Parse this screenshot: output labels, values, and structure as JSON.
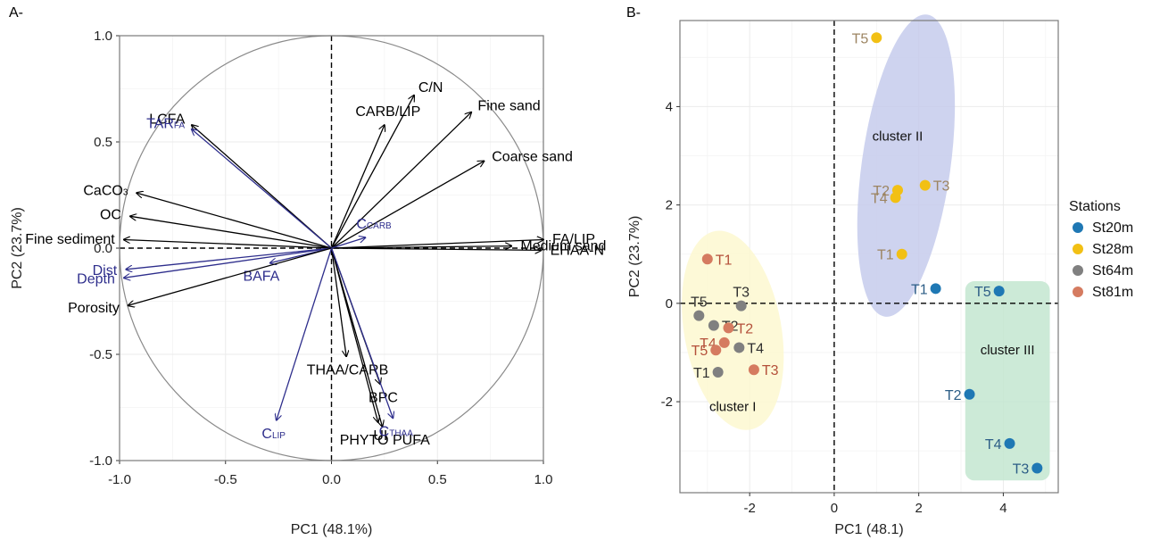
{
  "chart_data": [
    {
      "type": "biplot",
      "panel_label": "A-",
      "xlabel": "PC1 (48.1%)",
      "ylabel": "PC2 (23.7%)",
      "xlim": [
        -1.0,
        1.0
      ],
      "ylim": [
        -1.0,
        1.0
      ],
      "xticks": [
        -1.0,
        -0.5,
        0.0,
        0.5,
        1.0
      ],
      "xtick_labels": [
        "-1.0",
        "-0.5",
        "0.0",
        "0.5",
        "1.0"
      ],
      "yticks": [
        -1.0,
        -0.5,
        0.0,
        0.5,
        1.0
      ],
      "ytick_labels": [
        "-1.0",
        "-0.5",
        "0.0",
        "0.5",
        "1.0"
      ],
      "grid": true,
      "unit_circle": true,
      "colors": {
        "response": "#000000",
        "explanatory": "#2e2e8c",
        "circle": "#8a8a8a",
        "grid": "#ebebeb"
      },
      "vectors": [
        {
          "label": "LCFA",
          "sub": "",
          "group": "response",
          "x": -0.66,
          "y": 0.58
        },
        {
          "label": "TAR",
          "sub": "FA",
          "group": "explanatory",
          "x": -0.66,
          "y": 0.56
        },
        {
          "label": "C/N",
          "sub": "",
          "group": "response",
          "x": 0.39,
          "y": 0.72
        },
        {
          "label": "CARB/LIP",
          "sub": "",
          "group": "response",
          "x": 0.25,
          "y": 0.58
        },
        {
          "label": "Fine sand",
          "sub": "",
          "group": "response",
          "x": 0.66,
          "y": 0.64
        },
        {
          "label": "Coarse sand",
          "sub": "",
          "group": "response",
          "x": 0.72,
          "y": 0.41
        },
        {
          "label": "CaCO",
          "sub": "3",
          "group": "response",
          "x": -0.92,
          "y": 0.26
        },
        {
          "label": "OC",
          "sub": "",
          "group": "response",
          "x": -0.95,
          "y": 0.15
        },
        {
          "label": "Fine sediment",
          "sub": "",
          "group": "response",
          "x": -0.98,
          "y": 0.04
        },
        {
          "label": "Medium sand",
          "sub": "",
          "group": "response",
          "x": 0.85,
          "y": 0.01
        },
        {
          "label": "FA/LIP",
          "sub": "",
          "group": "response",
          "x": 1.0,
          "y": 0.04
        },
        {
          "label": "EHAA-N",
          "sub": "",
          "group": "response",
          "x": 0.99,
          "y": -0.01
        },
        {
          "label": "C",
          "sub": "CARB",
          "group": "explanatory",
          "x": 0.16,
          "y": 0.05
        },
        {
          "label": "Dist",
          "sub": "",
          "group": "explanatory",
          "x": -0.97,
          "y": -0.1
        },
        {
          "label": "Depth",
          "sub": "",
          "group": "explanatory",
          "x": -0.98,
          "y": -0.14
        },
        {
          "label": "BAFA",
          "sub": "",
          "group": "explanatory",
          "x": -0.29,
          "y": -0.07
        },
        {
          "label": "Porosity",
          "sub": "",
          "group": "response",
          "x": -0.96,
          "y": -0.27
        },
        {
          "label": "THAA/CARB",
          "sub": "",
          "group": "response",
          "x": 0.07,
          "y": -0.51
        },
        {
          "label": "BPC",
          "sub": "",
          "group": "response",
          "x": 0.23,
          "y": -0.64
        },
        {
          "label": "C",
          "sub": "LIP",
          "group": "explanatory",
          "x": -0.26,
          "y": -0.81
        },
        {
          "label": "UI",
          "sub": "",
          "group": "response",
          "x": 0.22,
          "y": -0.82
        },
        {
          "label": "PHYTO PUFA",
          "sub": "",
          "group": "response",
          "x": 0.24,
          "y": -0.84
        },
        {
          "label": "C",
          "sub": "THAA",
          "group": "explanatory",
          "x": 0.29,
          "y": -0.8
        }
      ]
    },
    {
      "type": "scatter",
      "panel_label": "B-",
      "xlabel": "PC1 (48.1)",
      "ylabel": "PC2 (23.7%)",
      "xlim": [
        -3.65,
        5.3
      ],
      "ylim": [
        -3.85,
        5.75
      ],
      "xticks": [
        -2,
        0,
        2,
        4
      ],
      "xtick_labels": [
        "-2",
        "0",
        "2",
        "4"
      ],
      "yticks": [
        -2,
        0,
        2,
        4
      ],
      "ytick_labels": [
        "-2",
        "0",
        "2",
        "4"
      ],
      "grid": true,
      "legend": {
        "title": "Stations",
        "position": "right",
        "items": [
          {
            "name": "St20m",
            "color": "#1f78b4",
            "label_color": "#2c5d86"
          },
          {
            "name": "St28m",
            "color": "#f2c014",
            "label_color": "#9c8461"
          },
          {
            "name": "St64m",
            "color": "#808080",
            "label_color": "#303030"
          },
          {
            "name": "St81m",
            "color": "#d57b60",
            "label_color": "#b4503a"
          }
        ]
      },
      "clusters": [
        {
          "name": "cluster I",
          "fill": "#fdf8d0",
          "shape": "ellipse",
          "cx": -2.4,
          "cy": -0.55,
          "rx": 1.15,
          "ry": 2.05,
          "angle_deg": -10,
          "label_x": -2.4,
          "label_y": -2.1
        },
        {
          "name": "cluster II",
          "fill": "#c6cbec",
          "shape": "ellipse",
          "cx": 1.7,
          "cy": 2.8,
          "rx": 1.05,
          "ry": 3.1,
          "angle_deg": 8,
          "label_x": 1.5,
          "label_y": 3.4
        },
        {
          "name": "cluster III",
          "fill": "#c3e6d0",
          "shape": "rect",
          "x0": 3.1,
          "x1": 5.1,
          "y0": -3.6,
          "y1": 0.45,
          "label_x": 4.1,
          "label_y": -0.95
        }
      ],
      "points": [
        {
          "station": "St20m",
          "label": "T1",
          "x": 2.4,
          "y": 0.3,
          "label_side": "left"
        },
        {
          "station": "St20m",
          "label": "T5",
          "x": 3.9,
          "y": 0.25,
          "label_side": "left"
        },
        {
          "station": "St20m",
          "label": "T2",
          "x": 3.2,
          "y": -1.85,
          "label_side": "left"
        },
        {
          "station": "St20m",
          "label": "T4",
          "x": 4.15,
          "y": -2.85,
          "label_side": "left"
        },
        {
          "station": "St20m",
          "label": "T3",
          "x": 4.8,
          "y": -3.35,
          "label_side": "left"
        },
        {
          "station": "St28m",
          "label": "T5",
          "x": 1.0,
          "y": 5.4,
          "label_side": "left"
        },
        {
          "station": "St28m",
          "label": "T2",
          "x": 1.5,
          "y": 2.3,
          "label_side": "left"
        },
        {
          "station": "St28m",
          "label": "T4",
          "x": 1.45,
          "y": 2.15,
          "label_side": "left"
        },
        {
          "station": "St28m",
          "label": "T3",
          "x": 2.15,
          "y": 2.4,
          "label_side": "right"
        },
        {
          "station": "St28m",
          "label": "T1",
          "x": 1.6,
          "y": 1.0,
          "label_side": "left"
        },
        {
          "station": "St64m",
          "label": "T5",
          "x": -3.2,
          "y": -0.25,
          "label_side": "above"
        },
        {
          "station": "St64m",
          "label": "T3",
          "x": -2.2,
          "y": -0.05,
          "label_side": "above"
        },
        {
          "station": "St64m",
          "label": "T2",
          "x": -2.85,
          "y": -0.45,
          "label_side": "right"
        },
        {
          "station": "St64m",
          "label": "T4",
          "x": -2.25,
          "y": -0.9,
          "label_side": "right"
        },
        {
          "station": "St64m",
          "label": "T1",
          "x": -2.75,
          "y": -1.4,
          "label_side": "left"
        },
        {
          "station": "St81m",
          "label": "T1",
          "x": -3.0,
          "y": 0.9,
          "label_side": "right"
        },
        {
          "station": "St81m",
          "label": "T2",
          "x": -2.5,
          "y": -0.5,
          "label_side": "right"
        },
        {
          "station": "St81m",
          "label": "T4",
          "x": -2.6,
          "y": -0.8,
          "label_side": "left"
        },
        {
          "station": "St81m",
          "label": "T5",
          "x": -2.8,
          "y": -0.95,
          "label_side": "left"
        },
        {
          "station": "St81m",
          "label": "T3",
          "x": -1.9,
          "y": -1.35,
          "label_side": "right"
        }
      ]
    }
  ]
}
